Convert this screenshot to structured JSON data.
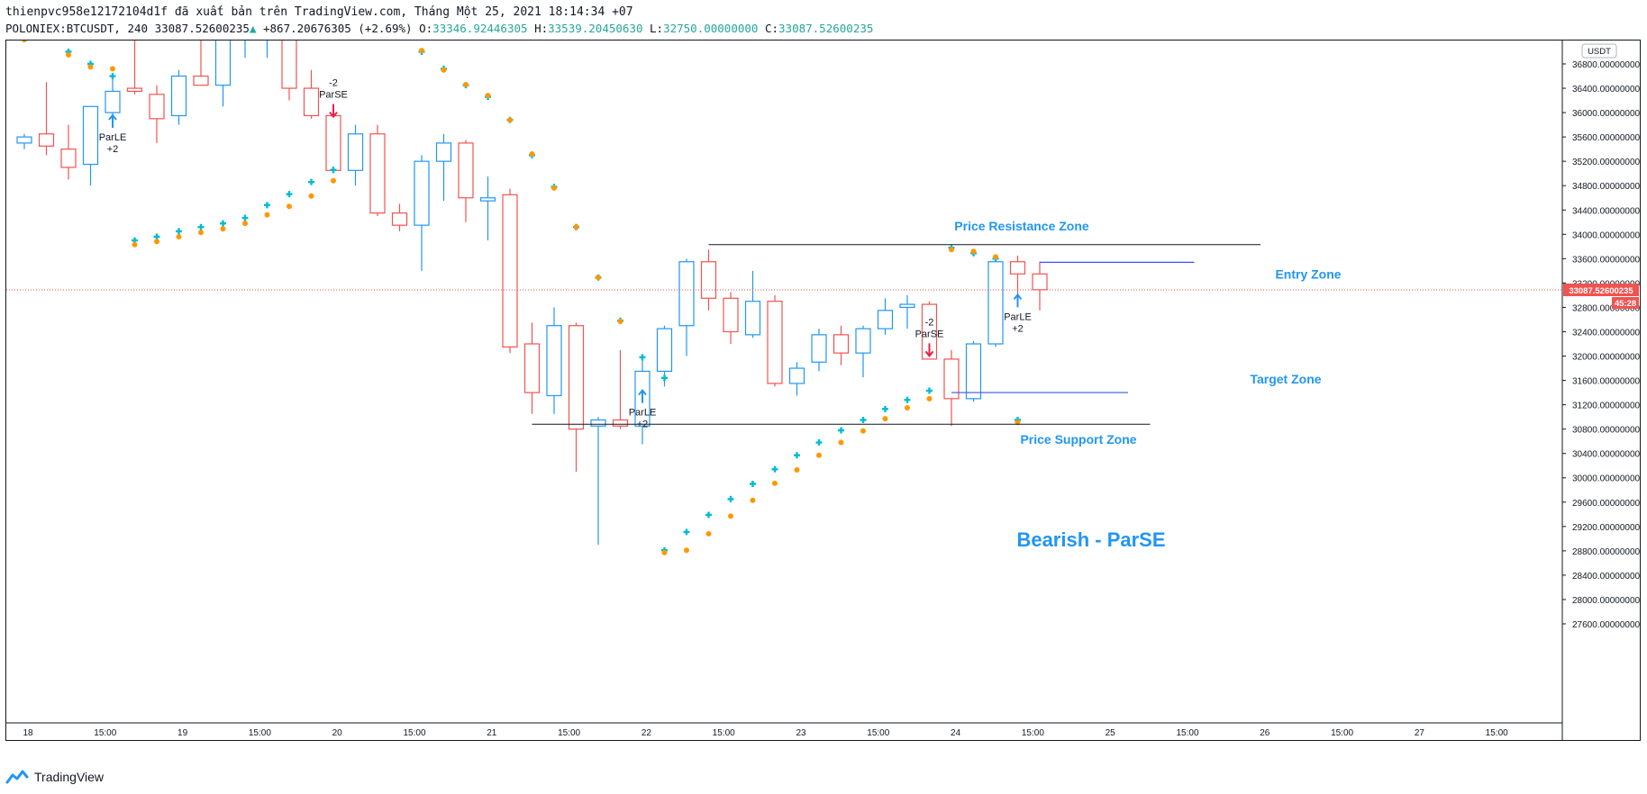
{
  "header": {
    "publisher_line": "thienpvc958e12172104d1f đã xuất bản trên TradingView.com, Tháng Một 25, 2021 18:14:34 +07",
    "symbol": "POLONIEX:BTCUSDT, 240",
    "last": "33087.52600235",
    "change": "+867.20676305 (+2.69%)",
    "o_label": "O:",
    "o_value": "33346.92446305",
    "h_label": "H:",
    "h_value": "33539.20450630",
    "l_label": "L:",
    "l_value": "32750.00000000",
    "c_label": "C:",
    "c_value": "33087.52600235"
  },
  "footer": {
    "brand": "TradingView"
  },
  "colors": {
    "up": "#2196f3",
    "down": "#f05350",
    "sar_cross": "#00bcd4",
    "sar_dot": "#ff9800",
    "annotation": "#2196f3",
    "price_line": "#f05350"
  },
  "chart_data": {
    "type": "candlestick",
    "symbol": "POLONIEX:BTCUSDT",
    "interval": "240",
    "currency": "USDT",
    "ylim": [
      27200,
      37000
    ],
    "y_ticks": [
      "36800.00000000",
      "36400.00000000",
      "36000.00000000",
      "35600.00000000",
      "35200.00000000",
      "34800.00000000",
      "34400.00000000",
      "34000.00000000",
      "33600.00000000",
      "33200.00000000",
      "32800.00000000",
      "32400.00000000",
      "32000.00000000",
      "31600.00000000",
      "31200.00000000",
      "30800.00000000",
      "30400.00000000",
      "30000.00000000",
      "29600.00000000",
      "29200.00000000",
      "28800.00000000",
      "28400.00000000",
      "28000.00000000",
      "27600.00000000"
    ],
    "x_ticks": [
      "18",
      "15:00",
      "19",
      "15:00",
      "20",
      "15:00",
      "21",
      "15:00",
      "22",
      "15:00",
      "23",
      "15:00",
      "24",
      "15:00",
      "25",
      "15:00",
      "26",
      "15:00",
      "27",
      "15:00"
    ],
    "last_price_label": "33087.52600235",
    "countdown": "45:28",
    "candles": [
      {
        "o": 35500,
        "h": 35650,
        "l": 35400,
        "c": 35600
      },
      {
        "o": 35650,
        "h": 36500,
        "l": 35300,
        "c": 35450
      },
      {
        "o": 35400,
        "h": 35800,
        "l": 34900,
        "c": 35100
      },
      {
        "o": 35150,
        "h": 36100,
        "l": 34800,
        "c": 36100
      },
      {
        "o": 36000,
        "h": 36600,
        "l": 35800,
        "c": 36350
      },
      {
        "o": 36400,
        "h": 37200,
        "l": 36300,
        "c": 36350
      },
      {
        "o": 36300,
        "h": 36450,
        "l": 35500,
        "c": 35900
      },
      {
        "o": 35950,
        "h": 36700,
        "l": 35800,
        "c": 36600
      },
      {
        "o": 36600,
        "h": 37200,
        "l": 36450,
        "c": 36450
      },
      {
        "o": 36450,
        "h": 37300,
        "l": 36100,
        "c": 37300
      },
      {
        "o": 37300,
        "h": 37400,
        "l": 36900,
        "c": 37300
      },
      {
        "o": 37300,
        "h": 37400,
        "l": 36900,
        "c": 37300
      },
      {
        "o": 37300,
        "h": 37400,
        "l": 36200,
        "c": 36400
      },
      {
        "o": 36400,
        "h": 36700,
        "l": 35900,
        "c": 35950
      },
      {
        "o": 35950,
        "h": 36100,
        "l": 35000,
        "c": 35050
      },
      {
        "o": 35050,
        "h": 35800,
        "l": 34800,
        "c": 35650
      },
      {
        "o": 35650,
        "h": 35800,
        "l": 34300,
        "c": 34350
      },
      {
        "o": 34350,
        "h": 34500,
        "l": 34050,
        "c": 34150
      },
      {
        "o": 34150,
        "h": 35300,
        "l": 33400,
        "c": 35200
      },
      {
        "o": 35200,
        "h": 35650,
        "l": 34550,
        "c": 35500
      },
      {
        "o": 35500,
        "h": 35550,
        "l": 34200,
        "c": 34600
      },
      {
        "o": 34550,
        "h": 34950,
        "l": 33900,
        "c": 34600
      },
      {
        "o": 34650,
        "h": 34750,
        "l": 32050,
        "c": 32150
      },
      {
        "o": 32200,
        "h": 32550,
        "l": 31050,
        "c": 31400
      },
      {
        "o": 31350,
        "h": 32800,
        "l": 31050,
        "c": 32500
      },
      {
        "o": 32500,
        "h": 32550,
        "l": 30100,
        "c": 30800
      },
      {
        "o": 30850,
        "h": 31000,
        "l": 28900,
        "c": 30950
      },
      {
        "o": 30950,
        "h": 32100,
        "l": 30800,
        "c": 30850
      },
      {
        "o": 30850,
        "h": 32000,
        "l": 30550,
        "c": 31750
      },
      {
        "o": 31750,
        "h": 32500,
        "l": 31500,
        "c": 32450
      },
      {
        "o": 32500,
        "h": 33600,
        "l": 32000,
        "c": 33550
      },
      {
        "o": 33550,
        "h": 33750,
        "l": 32750,
        "c": 32950
      },
      {
        "o": 32950,
        "h": 33050,
        "l": 32200,
        "c": 32400
      },
      {
        "o": 32350,
        "h": 33400,
        "l": 32300,
        "c": 32900
      },
      {
        "o": 32900,
        "h": 33000,
        "l": 31500,
        "c": 31550
      },
      {
        "o": 31550,
        "h": 31900,
        "l": 31350,
        "c": 31800
      },
      {
        "o": 31900,
        "h": 32450,
        "l": 31750,
        "c": 32350
      },
      {
        "o": 32350,
        "h": 32500,
        "l": 31850,
        "c": 32050
      },
      {
        "o": 32050,
        "h": 32500,
        "l": 31650,
        "c": 32450
      },
      {
        "o": 32450,
        "h": 32950,
        "l": 32350,
        "c": 32750
      },
      {
        "o": 32800,
        "h": 33000,
        "l": 32450,
        "c": 32850
      },
      {
        "o": 32850,
        "h": 32900,
        "l": 31950,
        "c": 31950
      },
      {
        "o": 31950,
        "h": 32100,
        "l": 30850,
        "c": 31300
      },
      {
        "o": 31300,
        "h": 32250,
        "l": 31250,
        "c": 32200
      },
      {
        "o": 32200,
        "h": 33600,
        "l": 32150,
        "c": 33550
      },
      {
        "o": 33550,
        "h": 33650,
        "l": 33000,
        "c": 33350
      },
      {
        "o": 33350,
        "h": 33550,
        "l": 32750,
        "c": 33090
      }
    ],
    "sar": [
      {
        "i": 0,
        "v": 37200,
        "style": "dot"
      },
      {
        "i": 1,
        "v": 37250,
        "style": "cross"
      },
      {
        "i": 2,
        "v": 37000,
        "style": "cross"
      },
      {
        "i": 3,
        "v": 36800,
        "style": "cross"
      },
      {
        "i": 4,
        "v": 36600,
        "style": "cross"
      },
      {
        "i": 2,
        "v": 36950,
        "style": "dot"
      },
      {
        "i": 3,
        "v": 36750,
        "style": "dot"
      },
      {
        "i": 4,
        "v": 36720,
        "style": "dot"
      },
      {
        "i": 5,
        "v": 33900,
        "style": "cross"
      },
      {
        "i": 6,
        "v": 33960,
        "style": "cross"
      },
      {
        "i": 7,
        "v": 34050,
        "style": "cross"
      },
      {
        "i": 8,
        "v": 34120,
        "style": "cross"
      },
      {
        "i": 9,
        "v": 34180,
        "style": "cross"
      },
      {
        "i": 10,
        "v": 34270,
        "style": "cross"
      },
      {
        "i": 11,
        "v": 34480,
        "style": "cross"
      },
      {
        "i": 12,
        "v": 34660,
        "style": "cross"
      },
      {
        "i": 13,
        "v": 34860,
        "style": "cross"
      },
      {
        "i": 14,
        "v": 35060,
        "style": "cross"
      },
      {
        "i": 5,
        "v": 33830,
        "style": "dot"
      },
      {
        "i": 6,
        "v": 33880,
        "style": "dot"
      },
      {
        "i": 7,
        "v": 33960,
        "style": "dot"
      },
      {
        "i": 8,
        "v": 34030,
        "style": "dot"
      },
      {
        "i": 9,
        "v": 34090,
        "style": "dot"
      },
      {
        "i": 10,
        "v": 34180,
        "style": "dot"
      },
      {
        "i": 11,
        "v": 34320,
        "style": "dot"
      },
      {
        "i": 12,
        "v": 34460,
        "style": "dot"
      },
      {
        "i": 13,
        "v": 34630,
        "style": "dot"
      },
      {
        "i": 14,
        "v": 34880,
        "style": "dot"
      },
      {
        "i": 18,
        "v": 37000,
        "style": "cross"
      },
      {
        "i": 19,
        "v": 36720,
        "style": "cross"
      },
      {
        "i": 20,
        "v": 36450,
        "style": "cross"
      },
      {
        "i": 21,
        "v": 36260,
        "style": "cross"
      },
      {
        "i": 22,
        "v": 35880,
        "style": "cross"
      },
      {
        "i": 23,
        "v": 35300,
        "style": "cross"
      },
      {
        "i": 24,
        "v": 34780,
        "style": "cross"
      },
      {
        "i": 25,
        "v": 34120,
        "style": "cross"
      },
      {
        "i": 26,
        "v": 33290,
        "style": "cross"
      },
      {
        "i": 27,
        "v": 32580,
        "style": "cross"
      },
      {
        "i": 28,
        "v": 31980,
        "style": "cross"
      },
      {
        "i": 29,
        "v": 31640,
        "style": "cross"
      },
      {
        "i": 18,
        "v": 37020,
        "style": "dot"
      },
      {
        "i": 19,
        "v": 36700,
        "style": "dot"
      },
      {
        "i": 20,
        "v": 36460,
        "style": "dot"
      },
      {
        "i": 21,
        "v": 36280,
        "style": "dot"
      },
      {
        "i": 22,
        "v": 35880,
        "style": "dot"
      },
      {
        "i": 23,
        "v": 35320,
        "style": "dot"
      },
      {
        "i": 24,
        "v": 34760,
        "style": "dot"
      },
      {
        "i": 25,
        "v": 34120,
        "style": "dot"
      },
      {
        "i": 26,
        "v": 33290,
        "style": "dot"
      },
      {
        "i": 27,
        "v": 32570,
        "style": "dot"
      },
      {
        "i": 29,
        "v": 28810,
        "style": "cross"
      },
      {
        "i": 30,
        "v": 29110,
        "style": "cross"
      },
      {
        "i": 31,
        "v": 29390,
        "style": "cross"
      },
      {
        "i": 32,
        "v": 29650,
        "style": "cross"
      },
      {
        "i": 33,
        "v": 29900,
        "style": "cross"
      },
      {
        "i": 34,
        "v": 30140,
        "style": "cross"
      },
      {
        "i": 35,
        "v": 30370,
        "style": "cross"
      },
      {
        "i": 36,
        "v": 30580,
        "style": "cross"
      },
      {
        "i": 37,
        "v": 30780,
        "style": "cross"
      },
      {
        "i": 38,
        "v": 30950,
        "style": "cross"
      },
      {
        "i": 39,
        "v": 31130,
        "style": "cross"
      },
      {
        "i": 40,
        "v": 31280,
        "style": "cross"
      },
      {
        "i": 41,
        "v": 31430,
        "style": "cross"
      },
      {
        "i": 29,
        "v": 28770,
        "style": "dot"
      },
      {
        "i": 30,
        "v": 28810,
        "style": "dot"
      },
      {
        "i": 31,
        "v": 29080,
        "style": "dot"
      },
      {
        "i": 32,
        "v": 29370,
        "style": "dot"
      },
      {
        "i": 33,
        "v": 29630,
        "style": "dot"
      },
      {
        "i": 34,
        "v": 29910,
        "style": "dot"
      },
      {
        "i": 35,
        "v": 30130,
        "style": "dot"
      },
      {
        "i": 36,
        "v": 30370,
        "style": "dot"
      },
      {
        "i": 37,
        "v": 30580,
        "style": "dot"
      },
      {
        "i": 38,
        "v": 30770,
        "style": "dot"
      },
      {
        "i": 39,
        "v": 30970,
        "style": "dot"
      },
      {
        "i": 40,
        "v": 31150,
        "style": "dot"
      },
      {
        "i": 41,
        "v": 31300,
        "style": "dot"
      },
      {
        "i": 42,
        "v": 33780,
        "style": "cross"
      },
      {
        "i": 43,
        "v": 33690,
        "style": "cross"
      },
      {
        "i": 44,
        "v": 33600,
        "style": "cross"
      },
      {
        "i": 42,
        "v": 33750,
        "style": "dot"
      },
      {
        "i": 43,
        "v": 33720,
        "style": "dot"
      },
      {
        "i": 44,
        "v": 33630,
        "style": "dot"
      },
      {
        "i": 45,
        "v": 30950,
        "style": "cross"
      },
      {
        "i": 45,
        "v": 30910,
        "style": "dot"
      }
    ],
    "signals": [
      {
        "i": 4,
        "type": "ParLE",
        "dir": "up",
        "v": 35750,
        "text1": "ParLE",
        "text2": "+2"
      },
      {
        "i": 14,
        "type": "ParSE",
        "dir": "down",
        "v": 36080,
        "text1": "-2",
        "text2": "ParSE"
      },
      {
        "i": 28,
        "type": "ParLE",
        "dir": "up",
        "v": 31230,
        "text1": "ParLE",
        "text2": "+2"
      },
      {
        "i": 41,
        "type": "ParSE",
        "dir": "down",
        "v": 32150,
        "text1": "-2",
        "text2": "ParSE"
      },
      {
        "i": 45,
        "type": "ParLE",
        "dir": "up",
        "v": 32800,
        "text1": "ParLE",
        "text2": "+2"
      }
    ],
    "lines": {
      "resistance": {
        "price": 33830,
        "from": 31,
        "to": 56
      },
      "support": {
        "price": 30880,
        "from": 23,
        "to": 51
      },
      "entry": {
        "price": 33540,
        "from": 46,
        "to": 53
      },
      "target": {
        "price": 31400,
        "from": 42,
        "to": 50
      }
    },
    "annotations": {
      "resistance": "Price Resistance Zone",
      "support": "Price Support Zone",
      "entry": "Entry Zone",
      "target": "Target Zone",
      "bearish": "Bearish - ParSE"
    }
  }
}
